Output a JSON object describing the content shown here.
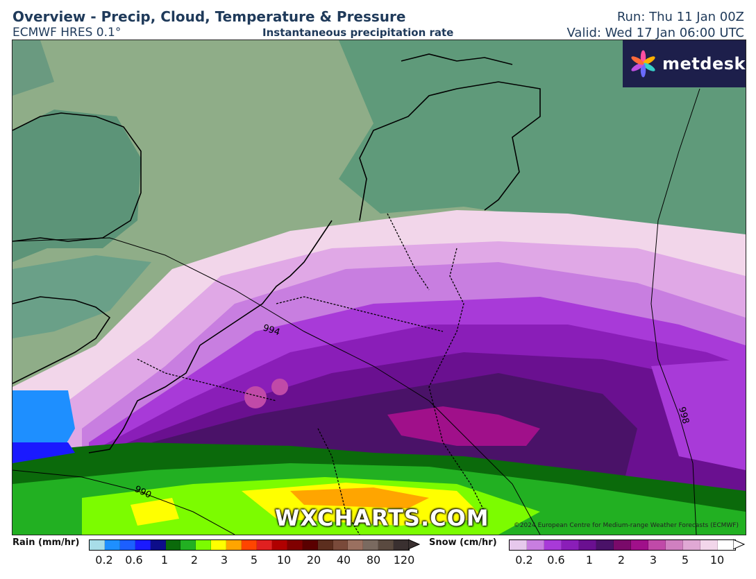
{
  "header": {
    "title": "Overview - Precip, Cloud, Temperature & Pressure",
    "model": "ECMWF HRES 0.1°",
    "subtitle": "Instantaneous precipitation rate",
    "run": "Run: Thu 11 Jan 00Z",
    "valid": "Valid: Wed 17 Jan 06:00 UTC"
  },
  "logo": {
    "text": "metdesk",
    "icon": "metdesk-flower-icon"
  },
  "map": {
    "watermark": "WXCHARTS.COM",
    "copyright": "©2024 European Centre for Medium-range Weather Forecasts (ECMWF)",
    "isobars": [
      "994",
      "998",
      "990"
    ]
  },
  "legend": {
    "rain": {
      "title": "Rain (mm/hr)",
      "colors": [
        "#a8dde8",
        "#1e8fff",
        "#1c5fff",
        "#1a1aff",
        "#0d0d8a",
        "#0b6a0b",
        "#22b022",
        "#7cfc00",
        "#ffff00",
        "#ffa500",
        "#ff4500",
        "#e02020",
        "#b00000",
        "#800000",
        "#5a0000",
        "#5c2e1e",
        "#7a4a3a",
        "#9a7060",
        "#7a6a60",
        "#5a4a40",
        "#3a3030"
      ],
      "ticks": [
        "0.2",
        "0.6",
        "1",
        "2",
        "3",
        "5",
        "10",
        "20",
        "40",
        "80",
        "120"
      ]
    },
    "snow": {
      "title": "Snow (cm/hr)",
      "colors": [
        "#e6c8ec",
        "#c87ee0",
        "#a83ad8",
        "#8a1eb8",
        "#6a1090",
        "#4a1268",
        "#7a0a6a",
        "#a0108a",
        "#c04aa8",
        "#d080c0",
        "#e0a8d4",
        "#f2d6ea",
        "#ffffff"
      ],
      "ticks": [
        "0.2",
        "0.6",
        "1",
        "2",
        "3",
        "5",
        "10"
      ]
    }
  }
}
